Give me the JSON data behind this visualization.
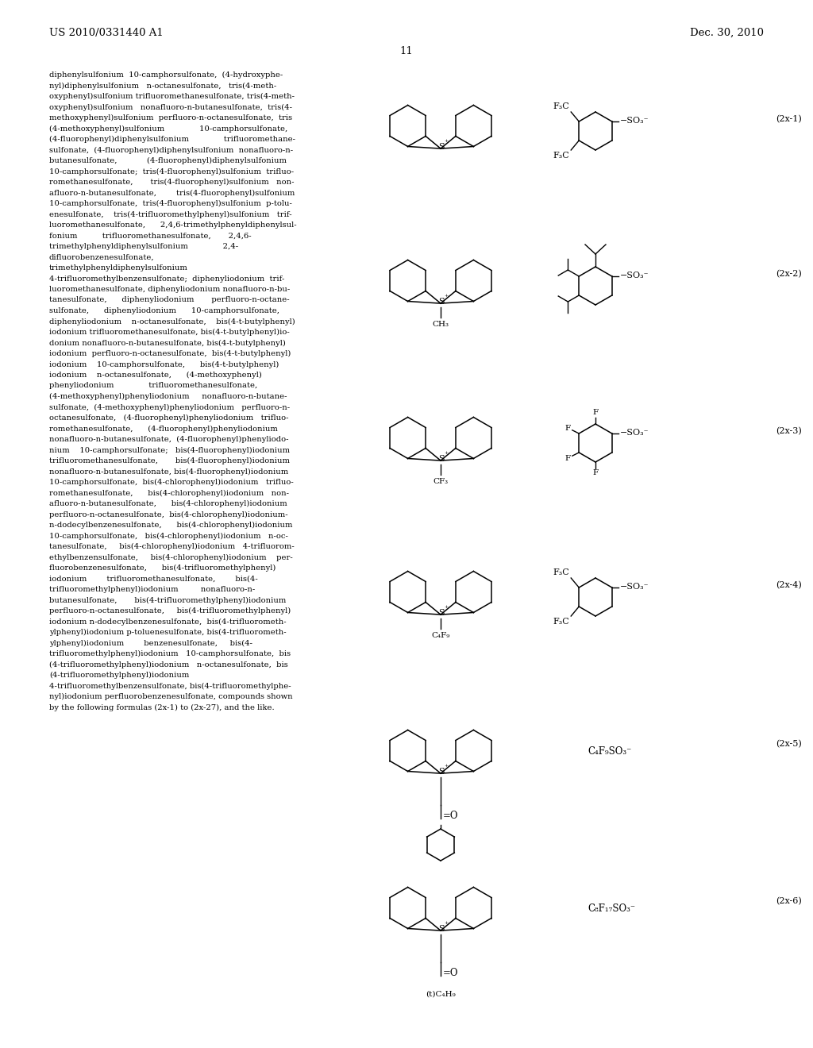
{
  "page_header_left": "US 2010/0331440 A1",
  "page_header_right": "Dec. 30, 2010",
  "page_number": "11",
  "background_color": "#ffffff",
  "text_color": "#000000",
  "left_text_lines": [
    "diphenylsulfonium  10-camphorsulfonate,  (4-hydroxyphe-",
    "nyl)diphenylsulfonium   n-octanesulfonate,   tris(4-meth-",
    "oxyphenyl)sulfonium trifluoromethanesulfonate, tris(4-meth-",
    "oxyphenyl)sulfonium   nonafluoro-n-butanesulfonate,  tris(4-",
    "methoxyphenyl)sulfonium  perfluoro-n-octanesulfonate,  tris",
    "(4-methoxyphenyl)sulfonium              10-camphorsulfonate,",
    "(4-fluorophenyl)diphenylsulfonium              trifluoromethane-",
    "sulfonate,  (4-fluorophenyl)diphenylsulfonium  nonafluoro-n-",
    "butanesulfonate,            (4-fluorophenyl)diphenylsulfonium",
    "10-camphorsulfonate;  tris(4-fluorophenyl)sulfonium  trifluo-",
    "romethanesulfonate,       tris(4-fluorophenyl)sulfonium   non-",
    "afluoro-n-butanesulfonate,        tris(4-fluorophenyl)sulfonium",
    "10-camphorsulfonate,  tris(4-fluorophenyl)sulfonium  p-tolu-",
    "enesulfonate,    tris(4-trifluoromethylphenyl)sulfonium   trif-",
    "luoromethanesulfonate,      2,4,6-trimethylphenyldiphenylsul-",
    "fonium          trifluoromethanesulfonate,       2,4,6-",
    "trimethylphenyldiphenylsulfonium              2,4-",
    "difluorobenzenesulfonate,",
    "trimethylphenyldiphenylsulfonium",
    "4-trifluoromethylbenzensulfonate;  diphenyliodonium  trif-",
    "luoromethanesulfonate, diphenyliodonium nonafluoro-n-bu-",
    "tanesulfonate,      diphenyliodonium       perfluoro-n-octane-",
    "sulfonate,      diphenyliodonium      10-camphorsulfonate,",
    "diphenyliodonium    n-octanesulfonate,    bis(4-t-butylphenyl)",
    "iodonium trifluoromethanesulfonate, bis(4-t-butylphenyl)io-",
    "donium nonafluoro-n-butanesulfonate, bis(4-t-butylphenyl)",
    "iodonium  perfluoro-n-octanesulfonate,  bis(4-t-butylphenyl)",
    "iodonium    10-camphorsulfonate,      bis(4-t-butylphenyl)",
    "iodonium    n-octanesulfonate,      (4-methoxyphenyl)",
    "phenyliodonium              trifluoromethanesulfonate,",
    "(4-methoxyphenyl)phenyliodonium     nonafluoro-n-butane-",
    "sulfonate,  (4-methoxyphenyl)phenyliodonium   perfluoro-n-",
    "octanesulfonate,   (4-fluorophenyl)phenyliodonium   trifluo-",
    "romethanesulfonate,      (4-fluorophenyl)phenyliodonium",
    "nonafluoro-n-butanesulfonate,  (4-fluorophenyl)phenyliodo-",
    "nium    10-camphorsulfonate;   bis(4-fluorophenyl)iodonium",
    "trifluoromethanesulfonate,       bis(4-fluorophenyl)iodonium",
    "nonafluoro-n-butanesulfonate, bis(4-fluorophenyl)iodonium",
    "10-camphorsulfonate,  bis(4-chlorophenyl)iodonium   trifluo-",
    "romethanesulfonate,      bis(4-chlorophenyl)iodonium   non-",
    "afluoro-n-butanesulfonate,      bis(4-chlorophenyl)iodonium",
    "perfluoro-n-octanesulfonate,  bis(4-chlorophenyl)iodonium-",
    "n-dodecylbenzenesulfonate,      bis(4-chlorophenyl)iodonium",
    "10-camphorsulfonate,   bis(4-chlorophenyl)iodonium   n-oc-",
    "tanesulfonate,     bis(4-chlorophenyl)iodonium   4-trifluorom-",
    "ethylbenzensulfonate,     bis(4-chlorophenyl)iodonium    per-",
    "fluorobenzenesulfonate,      bis(4-trifluoromethylphenyl)",
    "iodonium        trifluoromethanesulfonate,        bis(4-",
    "trifluoromethylphenyl)iodonium         nonafluoro-n-",
    "butanesulfonate,       bis(4-trifluoromethylphenyl)iodonium",
    "perfluoro-n-octanesulfonate,     bis(4-trifluoromethylphenyl)",
    "iodonium n-dodecylbenzenesulfonate,  bis(4-trifluorometh-",
    "ylphenyl)iodonium p-toluenesulfonate, bis(4-trifluorometh-",
    "ylphenyl)iodonium        benzenesulfonate,     bis(4-",
    "trifluoromethylphenyl)iodonium   10-camphorsulfonate,  bis",
    "(4-trifluoromethylphenyl)iodonium   n-octanesulfonate,  bis",
    "(4-trifluoromethylphenyl)iodonium",
    "4-trifluoromethylbenzensulfonate, bis(4-trifluoromethylphe-",
    "nyl)iodonium perfluorobenzenesulfonate, compounds shown",
    "by the following formulas (2x-1) to (2x-27), and the like."
  ]
}
